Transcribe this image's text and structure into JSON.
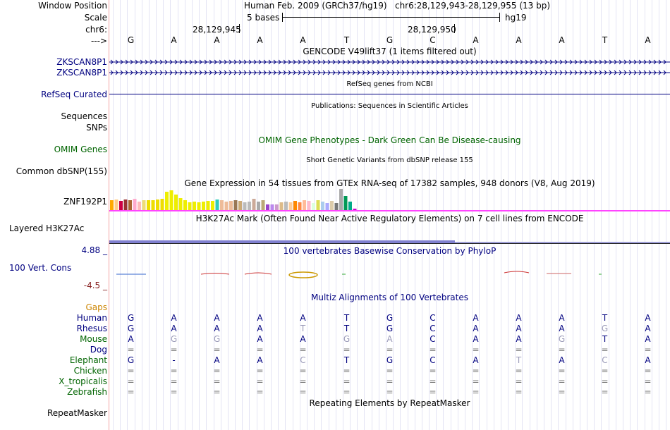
{
  "position": {
    "label": "Window Position",
    "assembly": "Human Feb. 2009 (GRCh37/hg19)",
    "range": "chr6:28,129,943-28,129,955 (13 bp)"
  },
  "scale": {
    "label": "Scale",
    "bases": "5 bases",
    "db": "hg19"
  },
  "chrom": {
    "label": "chr6:",
    "tick1": "28,129,945",
    "tick2": "28,129,950"
  },
  "seq": {
    "label": "--->",
    "bases": [
      "G",
      "A",
      "A",
      "A",
      "A",
      "T",
      "G",
      "C",
      "A",
      "A",
      "A",
      "T",
      "A"
    ]
  },
  "gencode": {
    "title": "GENCODE V49lift37 (1 items filtered out)",
    "items": [
      "ZKSCAN8P1",
      "ZKSCAN8P1"
    ]
  },
  "refseq": {
    "label": "RefSeq Curated",
    "title": "RefSeq genes from NCBI"
  },
  "publications": {
    "label": "Sequences",
    "title": "Publications: Sequences in Scientific Articles"
  },
  "snps": {
    "label": "SNPs"
  },
  "omim": {
    "label": "OMIM Genes",
    "title": "OMIM Gene Phenotypes - Dark Green Can Be Disease-causing"
  },
  "dbsnp": {
    "label": "Common dbSNP(155)",
    "title": "Short Genetic Variants from dbSNP release 155"
  },
  "gtex": {
    "title": "Gene Expression in 54 tissues from GTEx RNA-seq of 17382 samples, 948 donors (V8, Aug 2019)",
    "gene": "ZNF192P1",
    "tissues": [
      {
        "v": 14,
        "c": "#ffaa00"
      },
      {
        "v": 15,
        "c": "#ffcc88"
      },
      {
        "v": 13,
        "c": "#cc0044"
      },
      {
        "v": 15,
        "c": "#993333"
      },
      {
        "v": 14,
        "c": "#aa6633"
      },
      {
        "v": 16,
        "c": "#ffaacc"
      },
      {
        "v": 12,
        "c": "#ffbbbb"
      },
      {
        "v": 14,
        "c": "#eedd77"
      },
      {
        "v": 14,
        "c": "#eedd00"
      },
      {
        "v": 14,
        "c": "#eedd00"
      },
      {
        "v": 15,
        "c": "#eedd00"
      },
      {
        "v": 16,
        "c": "#eedd00"
      },
      {
        "v": 26,
        "c": "#eeee00"
      },
      {
        "v": 28,
        "c": "#eeee00"
      },
      {
        "v": 22,
        "c": "#eeee00"
      },
      {
        "v": 17,
        "c": "#eeee00"
      },
      {
        "v": 14,
        "c": "#eeee00"
      },
      {
        "v": 11,
        "c": "#eeee00"
      },
      {
        "v": 12,
        "c": "#eeee00"
      },
      {
        "v": 11,
        "c": "#eeee00"
      },
      {
        "v": 12,
        "c": "#eeee00"
      },
      {
        "v": 13,
        "c": "#eeee00"
      },
      {
        "v": 13,
        "c": "#eeee00"
      },
      {
        "v": 15,
        "c": "#33ccbb"
      },
      {
        "v": 14,
        "c": "#eebb99"
      },
      {
        "v": 12,
        "c": "#eebb99"
      },
      {
        "v": 13,
        "c": "#eebb99"
      },
      {
        "v": 14,
        "c": "#997755"
      },
      {
        "v": 13,
        "c": "#ccaa77"
      },
      {
        "v": 11,
        "c": "#bbbbbb"
      },
      {
        "v": 12,
        "c": "#bbbbbb"
      },
      {
        "v": 16,
        "c": "#ccaa99"
      },
      {
        "v": 12,
        "c": "#aaaaaa"
      },
      {
        "v": 14,
        "c": "#bbaa77"
      },
      {
        "v": 8,
        "c": "#9944cc"
      },
      {
        "v": 8,
        "c": "#bb88ee"
      },
      {
        "v": 8,
        "c": "#cc99cc"
      },
      {
        "v": 11,
        "c": "#ddbb88"
      },
      {
        "v": 12,
        "c": "#bbbbbb"
      },
      {
        "v": 11,
        "c": "#ffcc99"
      },
      {
        "v": 13,
        "c": "#ff8800"
      },
      {
        "v": 11,
        "c": "#ff8844"
      },
      {
        "v": 14,
        "c": "#ffbb99"
      },
      {
        "v": 13,
        "c": "#ffbbcc"
      },
      {
        "v": 10,
        "c": "#ddffdd"
      },
      {
        "v": 14,
        "c": "#dddd55"
      },
      {
        "v": 12,
        "c": "#aaccee"
      },
      {
        "v": 10,
        "c": "#aaaaff"
      },
      {
        "v": 13,
        "c": "#ddccaa"
      },
      {
        "v": 10,
        "c": "#777777"
      },
      {
        "v": 30,
        "c": "#aaaaaa"
      },
      {
        "v": 20,
        "c": "#009955"
      },
      {
        "v": 12,
        "c": "#00aa88"
      },
      {
        "v": 2,
        "c": "#cc00cc"
      }
    ]
  },
  "h3k27ac": {
    "label": "Layered H3K27Ac",
    "title": "H3K27Ac Mark (Often Found Near Active Regulatory Elements) on 7 cell lines from ENCODE"
  },
  "phylop": {
    "max": "4.88 _",
    "label": "100 Vert. Cons",
    "min": "-4.5 _",
    "title": "100 vertebrates Basewise Conservation by PhyloP"
  },
  "multiz": {
    "title": "Multiz Alignments of 100 Vertebrates",
    "gaps_label": "Gaps"
  },
  "alignments": [
    {
      "species": "Human",
      "color": "#000080",
      "bases": [
        "G",
        "A",
        "A",
        "A",
        "A",
        "T",
        "G",
        "C",
        "A",
        "A",
        "A",
        "T",
        "A"
      ],
      "dim": [
        0,
        0,
        0,
        0,
        0,
        0,
        0,
        0,
        0,
        0,
        0,
        0,
        0
      ]
    },
    {
      "species": "Rhesus",
      "color": "#000080",
      "bases": [
        "G",
        "A",
        "A",
        "A",
        "T",
        "T",
        "G",
        "C",
        "A",
        "A",
        "A",
        "G",
        "A"
      ],
      "dim": [
        0,
        0,
        0,
        0,
        1,
        0,
        0,
        0,
        0,
        0,
        0,
        1,
        0
      ]
    },
    {
      "species": "Mouse",
      "color": "#006400",
      "bases": [
        "A",
        "G",
        "G",
        "A",
        "A",
        "G",
        "A",
        "C",
        "A",
        "A",
        "G",
        "T",
        "A"
      ],
      "dim": [
        0,
        1,
        1,
        0,
        0,
        1,
        1,
        0,
        0,
        0,
        1,
        0,
        0
      ]
    },
    {
      "species": "Dog",
      "color": "#000080",
      "bases": [
        "=",
        "=",
        "=",
        "=",
        "=",
        "=",
        "=",
        "=",
        "=",
        "=",
        "=",
        "=",
        "="
      ],
      "dim": [
        0,
        0,
        0,
        0,
        0,
        0,
        0,
        0,
        0,
        0,
        0,
        0,
        0
      ]
    },
    {
      "species": "Elephant",
      "color": "#006400",
      "bases": [
        "G",
        "-",
        "A",
        "A",
        "C",
        "T",
        "G",
        "C",
        "A",
        "T",
        "A",
        "C",
        "A"
      ],
      "dim": [
        0,
        0,
        0,
        0,
        1,
        0,
        0,
        0,
        0,
        1,
        0,
        1,
        0
      ]
    },
    {
      "species": "Chicken",
      "color": "#006400",
      "bases": [
        "=",
        "=",
        "=",
        "=",
        "=",
        "=",
        "=",
        "=",
        "=",
        "=",
        "=",
        "=",
        "="
      ],
      "dim": [
        0,
        0,
        0,
        0,
        0,
        0,
        0,
        0,
        0,
        0,
        0,
        0,
        0
      ]
    },
    {
      "species": "X_tropicalis",
      "color": "#006400",
      "bases": [
        "=",
        "=",
        "=",
        "=",
        "=",
        "=",
        "=",
        "=",
        "=",
        "=",
        "=",
        "=",
        "="
      ],
      "dim": [
        0,
        0,
        0,
        0,
        0,
        0,
        0,
        0,
        0,
        0,
        0,
        0,
        0
      ]
    },
    {
      "species": "Zebrafish",
      "color": "#006400",
      "bases": [
        "=",
        "=",
        "=",
        "=",
        "=",
        "=",
        "=",
        "=",
        "=",
        "=",
        "=",
        "=",
        "="
      ],
      "dim": [
        0,
        0,
        0,
        0,
        0,
        0,
        0,
        0,
        0,
        0,
        0,
        0,
        0
      ]
    }
  ],
  "repeatmasker": {
    "label": "RepeatMasker",
    "title": "Repeating Elements by RepeatMasker"
  },
  "colors": {
    "label_blue": "#000080",
    "omim_green": "#006400",
    "gaps_orange": "#cc8400",
    "phylop_min": "#882222",
    "separator": "#f4a4a4"
  }
}
